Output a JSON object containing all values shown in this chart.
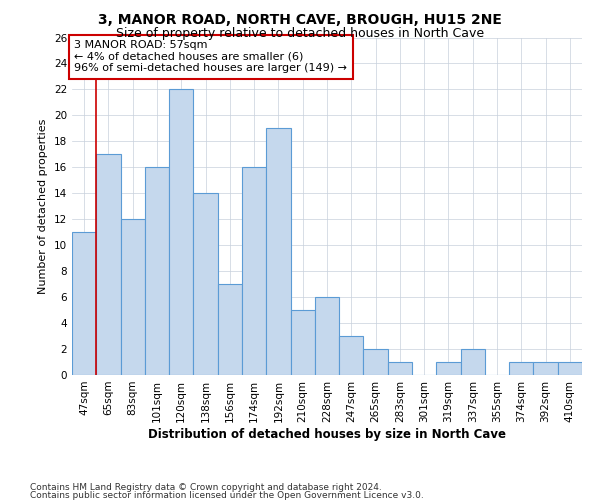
{
  "title": "3, MANOR ROAD, NORTH CAVE, BROUGH, HU15 2NE",
  "subtitle": "Size of property relative to detached houses in North Cave",
  "xlabel": "Distribution of detached houses by size in North Cave",
  "ylabel": "Number of detached properties",
  "categories": [
    "47sqm",
    "65sqm",
    "83sqm",
    "101sqm",
    "120sqm",
    "138sqm",
    "156sqm",
    "174sqm",
    "192sqm",
    "210sqm",
    "228sqm",
    "247sqm",
    "265sqm",
    "283sqm",
    "301sqm",
    "319sqm",
    "337sqm",
    "355sqm",
    "374sqm",
    "392sqm",
    "410sqm"
  ],
  "values": [
    11,
    17,
    12,
    16,
    22,
    14,
    7,
    16,
    19,
    5,
    6,
    3,
    2,
    1,
    0,
    1,
    2,
    0,
    1,
    1,
    1
  ],
  "bar_color": "#c5d8ed",
  "bar_edge_color": "#5b9bd5",
  "annotation_line1": "3 MANOR ROAD: 57sqm",
  "annotation_line2": "← 4% of detached houses are smaller (6)",
  "annotation_line3": "96% of semi-detached houses are larger (149) →",
  "annotation_box_color": "#ffffff",
  "annotation_box_edge_color": "#cc0000",
  "vline_color": "#cc0000",
  "vline_x": 0.5,
  "ylim": [
    0,
    26
  ],
  "yticks": [
    0,
    2,
    4,
    6,
    8,
    10,
    12,
    14,
    16,
    18,
    20,
    22,
    24,
    26
  ],
  "grid_color": "#c8d0dc",
  "footer1": "Contains HM Land Registry data © Crown copyright and database right 2024.",
  "footer2": "Contains public sector information licensed under the Open Government Licence v3.0.",
  "bg_color": "#ffffff",
  "title_fontsize": 10,
  "subtitle_fontsize": 9,
  "xlabel_fontsize": 8.5,
  "ylabel_fontsize": 8,
  "tick_fontsize": 7.5,
  "annotation_fontsize": 8,
  "footer_fontsize": 6.5
}
